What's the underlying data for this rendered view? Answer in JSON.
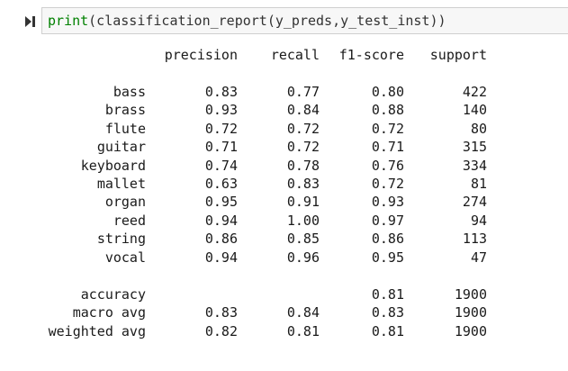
{
  "input": {
    "code_fn": "print",
    "code_rest": "(classification_report(y_preds,y_test_inst))"
  },
  "report": {
    "headers": [
      "precision",
      "recall",
      "f1-score",
      "support"
    ],
    "rows": [
      {
        "label": "bass",
        "precision": "0.83",
        "recall": "0.77",
        "f1": "0.80",
        "support": "422"
      },
      {
        "label": "brass",
        "precision": "0.93",
        "recall": "0.84",
        "f1": "0.88",
        "support": "140"
      },
      {
        "label": "flute",
        "precision": "0.72",
        "recall": "0.72",
        "f1": "0.72",
        "support": "80"
      },
      {
        "label": "guitar",
        "precision": "0.71",
        "recall": "0.72",
        "f1": "0.71",
        "support": "315"
      },
      {
        "label": "keyboard",
        "precision": "0.74",
        "recall": "0.78",
        "f1": "0.76",
        "support": "334"
      },
      {
        "label": "mallet",
        "precision": "0.63",
        "recall": "0.83",
        "f1": "0.72",
        "support": "81"
      },
      {
        "label": "organ",
        "precision": "0.95",
        "recall": "0.91",
        "f1": "0.93",
        "support": "274"
      },
      {
        "label": "reed",
        "precision": "0.94",
        "recall": "1.00",
        "f1": "0.97",
        "support": "94"
      },
      {
        "label": "string",
        "precision": "0.86",
        "recall": "0.85",
        "f1": "0.86",
        "support": "113"
      },
      {
        "label": "vocal",
        "precision": "0.94",
        "recall": "0.96",
        "f1": "0.95",
        "support": "47"
      }
    ],
    "summary": [
      {
        "label": "accuracy",
        "precision": "",
        "recall": "",
        "f1": "0.81",
        "support": "1900"
      },
      {
        "label": "macro avg",
        "precision": "0.83",
        "recall": "0.84",
        "f1": "0.83",
        "support": "1900"
      },
      {
        "label": "weighted avg",
        "precision": "0.82",
        "recall": "0.81",
        "f1": "0.81",
        "support": "1900"
      }
    ]
  }
}
